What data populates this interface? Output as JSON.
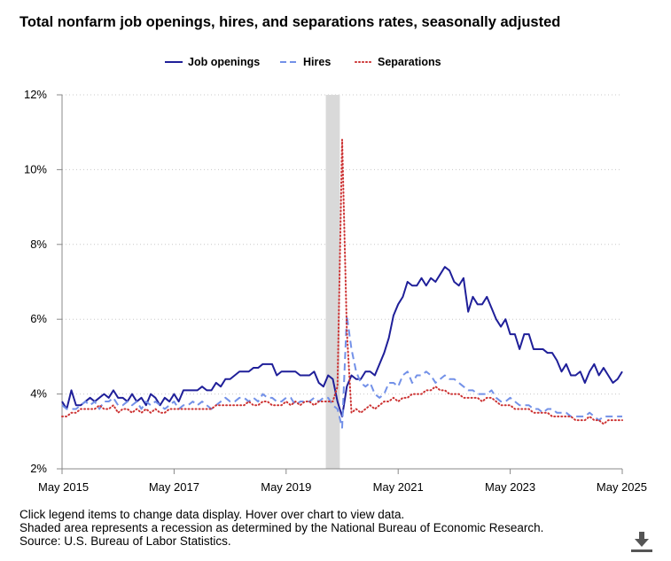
{
  "title": "Total nonfarm job openings, hires, and separations rates, seasonally adjusted",
  "legend": [
    {
      "label": "Job openings",
      "color": "#1f1f99",
      "style": "solid"
    },
    {
      "label": "Hires",
      "color": "#7391e8",
      "style": "dashed"
    },
    {
      "label": "Separations",
      "color": "#cc3333",
      "style": "dotted"
    }
  ],
  "notes": [
    "Click legend items to change data display. Hover over chart to view data.",
    "Shaded area represents a recession as determined by the National Bureau of Economic Research.",
    "Source: U.S. Bureau of Labor Statistics."
  ],
  "download_icon": "download-icon",
  "chart_data": {
    "type": "line",
    "title": "Total nonfarm job openings, hires, and separations rates, seasonally adjusted",
    "x_start": "May 2015",
    "x_end": "May 2025",
    "frequency": "monthly",
    "xticks": [
      "May 2015",
      "May 2017",
      "May 2019",
      "May 2021",
      "May 2023",
      "May 2025"
    ],
    "yticks": [
      "2%",
      "4%",
      "6%",
      "8%",
      "10%",
      "12%"
    ],
    "ylim": [
      2,
      12
    ],
    "y_unit": "%",
    "grid": "horizontal dotted",
    "legend_position": "top-center",
    "recession_shading": {
      "start": "Feb 2020",
      "end": "Apr 2020"
    },
    "series": [
      {
        "name": "Job openings",
        "color": "#1f1f99",
        "values": [
          3.8,
          3.6,
          4.1,
          3.7,
          3.7,
          3.8,
          3.9,
          3.8,
          3.9,
          4.0,
          3.9,
          4.1,
          3.9,
          3.9,
          3.8,
          4.0,
          3.8,
          3.9,
          3.7,
          4.0,
          3.9,
          3.7,
          3.9,
          3.8,
          4.0,
          3.8,
          4.1,
          4.1,
          4.1,
          4.1,
          4.2,
          4.1,
          4.1,
          4.3,
          4.2,
          4.4,
          4.4,
          4.5,
          4.6,
          4.6,
          4.6,
          4.7,
          4.7,
          4.8,
          4.8,
          4.8,
          4.5,
          4.6,
          4.6,
          4.6,
          4.6,
          4.5,
          4.5,
          4.5,
          4.6,
          4.3,
          4.2,
          4.5,
          4.4,
          3.8,
          3.4,
          4.2,
          4.5,
          4.4,
          4.4,
          4.6,
          4.6,
          4.5,
          4.8,
          5.1,
          5.5,
          6.1,
          6.4,
          6.6,
          7.0,
          6.9,
          6.9,
          7.1,
          6.9,
          7.1,
          7.0,
          7.2,
          7.4,
          7.3,
          7.0,
          6.9,
          7.1,
          6.2,
          6.6,
          6.4,
          6.4,
          6.6,
          6.3,
          6.0,
          5.8,
          6.0,
          5.6,
          5.6,
          5.2,
          5.6,
          5.6,
          5.2,
          5.2,
          5.2,
          5.1,
          5.1,
          4.9,
          4.6,
          4.8,
          4.5,
          4.5,
          4.6,
          4.3,
          4.6,
          4.8,
          4.5,
          4.7,
          4.5,
          4.3,
          4.4,
          4.6
        ]
      },
      {
        "name": "Hires",
        "color": "#7391e8",
        "values": [
          3.7,
          3.6,
          3.6,
          3.6,
          3.7,
          3.8,
          3.7,
          3.8,
          3.6,
          3.8,
          3.8,
          3.9,
          3.7,
          3.7,
          3.8,
          3.7,
          3.8,
          3.6,
          3.8,
          3.7,
          3.8,
          3.7,
          3.6,
          3.7,
          3.8,
          3.6,
          3.7,
          3.7,
          3.8,
          3.7,
          3.8,
          3.7,
          3.6,
          3.7,
          3.8,
          3.9,
          3.8,
          3.8,
          3.9,
          3.9,
          3.8,
          3.9,
          3.8,
          4.0,
          3.9,
          3.9,
          3.8,
          3.8,
          3.9,
          3.9,
          3.7,
          3.8,
          3.8,
          3.8,
          3.9,
          3.8,
          3.9,
          3.9,
          3.7,
          3.6,
          3.1,
          6.1,
          5.2,
          4.6,
          4.3,
          4.2,
          4.3,
          4.0,
          3.9,
          4.0,
          4.3,
          4.3,
          4.2,
          4.5,
          4.6,
          4.3,
          4.5,
          4.5,
          4.6,
          4.5,
          4.3,
          4.4,
          4.5,
          4.4,
          4.4,
          4.3,
          4.2,
          4.1,
          4.1,
          4.0,
          4.0,
          4.0,
          4.1,
          3.9,
          3.8,
          3.8,
          3.9,
          3.8,
          3.7,
          3.7,
          3.7,
          3.6,
          3.6,
          3.5,
          3.6,
          3.6,
          3.5,
          3.5,
          3.5,
          3.4,
          3.4,
          3.4,
          3.4,
          3.5,
          3.4,
          3.3,
          3.4,
          3.4,
          3.4,
          3.4,
          3.4
        ]
      },
      {
        "name": "Separations",
        "color": "#cc3333",
        "values": [
          3.4,
          3.4,
          3.5,
          3.5,
          3.6,
          3.6,
          3.6,
          3.6,
          3.7,
          3.6,
          3.6,
          3.7,
          3.5,
          3.6,
          3.6,
          3.5,
          3.6,
          3.5,
          3.6,
          3.5,
          3.6,
          3.5,
          3.5,
          3.6,
          3.6,
          3.6,
          3.6,
          3.6,
          3.6,
          3.6,
          3.6,
          3.6,
          3.6,
          3.7,
          3.7,
          3.7,
          3.7,
          3.7,
          3.7,
          3.7,
          3.8,
          3.7,
          3.7,
          3.8,
          3.8,
          3.7,
          3.7,
          3.7,
          3.8,
          3.7,
          3.8,
          3.7,
          3.8,
          3.8,
          3.7,
          3.8,
          3.8,
          3.8,
          3.8,
          4.2,
          10.8,
          5.7,
          3.5,
          3.6,
          3.5,
          3.6,
          3.7,
          3.6,
          3.7,
          3.8,
          3.8,
          3.9,
          3.8,
          3.9,
          3.9,
          4.0,
          4.0,
          4.0,
          4.1,
          4.1,
          4.2,
          4.1,
          4.1,
          4.0,
          4.0,
          4.0,
          3.9,
          3.9,
          3.9,
          3.9,
          3.8,
          3.9,
          3.9,
          3.8,
          3.7,
          3.7,
          3.7,
          3.6,
          3.6,
          3.6,
          3.6,
          3.5,
          3.5,
          3.5,
          3.5,
          3.4,
          3.4,
          3.4,
          3.4,
          3.4,
          3.3,
          3.3,
          3.3,
          3.4,
          3.3,
          3.3,
          3.2,
          3.3,
          3.3,
          3.3,
          3.3
        ]
      }
    ]
  }
}
